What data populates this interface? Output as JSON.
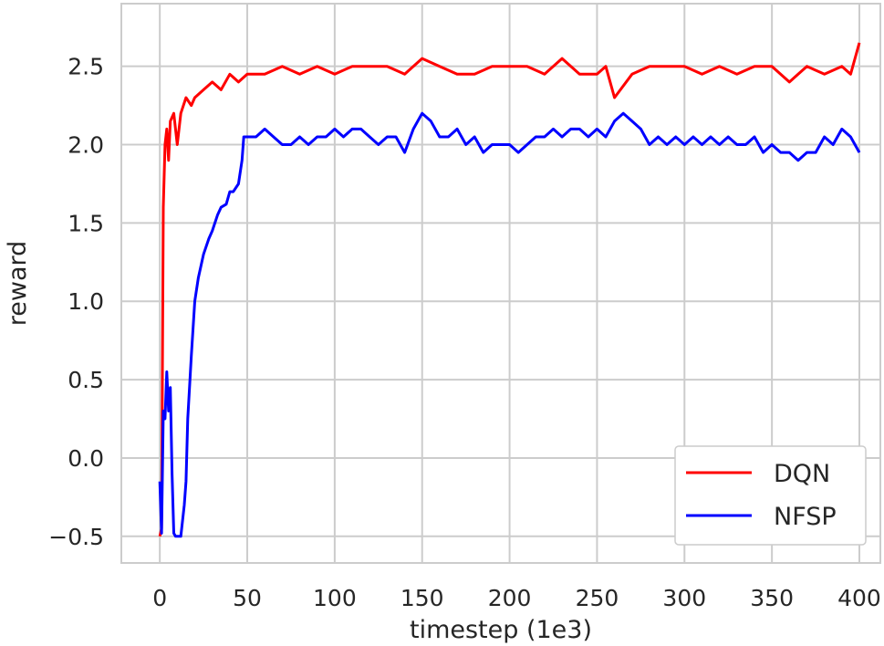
{
  "chart_data": {
    "type": "line",
    "title": "",
    "xlabel": "timestep (1e3)",
    "ylabel": "reward",
    "xlim": [
      -22,
      412
    ],
    "ylim": [
      -0.67,
      2.9
    ],
    "xticks": [
      0,
      50,
      100,
      150,
      200,
      250,
      300,
      350,
      400
    ],
    "xtick_labels": [
      "0",
      "50",
      "100",
      "150",
      "200",
      "250",
      "300",
      "350",
      "400"
    ],
    "yticks": [
      -0.5,
      0.0,
      0.5,
      1.0,
      1.5,
      2.0,
      2.5
    ],
    "ytick_labels": [
      "−0.5",
      "0.0",
      "0.5",
      "1.0",
      "1.5",
      "2.0",
      "2.5"
    ],
    "grid": true,
    "legend_position": "lower-right",
    "series": [
      {
        "name": "DQN",
        "color": "#ff0000",
        "x": [
          0,
          1,
          2,
          3,
          4,
          5,
          6,
          8,
          10,
          12,
          15,
          18,
          20,
          25,
          30,
          35,
          40,
          45,
          50,
          60,
          70,
          80,
          90,
          100,
          110,
          120,
          130,
          140,
          150,
          160,
          170,
          180,
          190,
          200,
          210,
          220,
          230,
          240,
          250,
          255,
          260,
          270,
          280,
          290,
          300,
          310,
          320,
          330,
          340,
          350,
          360,
          365,
          370,
          380,
          390,
          395,
          400
        ],
        "y": [
          -0.5,
          -0.45,
          1.6,
          2.0,
          2.1,
          1.9,
          2.15,
          2.2,
          2.0,
          2.2,
          2.3,
          2.25,
          2.3,
          2.35,
          2.4,
          2.35,
          2.45,
          2.4,
          2.45,
          2.45,
          2.5,
          2.45,
          2.5,
          2.45,
          2.5,
          2.5,
          2.5,
          2.45,
          2.55,
          2.5,
          2.45,
          2.45,
          2.5,
          2.5,
          2.5,
          2.45,
          2.55,
          2.45,
          2.45,
          2.5,
          2.3,
          2.45,
          2.5,
          2.5,
          2.5,
          2.45,
          2.5,
          2.45,
          2.5,
          2.5,
          2.4,
          2.45,
          2.5,
          2.45,
          2.5,
          2.45,
          2.65
        ]
      },
      {
        "name": "NFSP",
        "color": "#0000ff",
        "x": [
          0,
          1,
          2,
          3,
          4,
          5,
          6,
          7,
          8,
          9,
          10,
          12,
          14,
          15,
          16,
          18,
          20,
          22,
          25,
          28,
          30,
          33,
          35,
          38,
          40,
          42,
          45,
          47,
          48,
          50,
          55,
          60,
          65,
          70,
          75,
          80,
          85,
          90,
          95,
          100,
          105,
          110,
          115,
          120,
          125,
          130,
          135,
          140,
          145,
          150,
          155,
          160,
          165,
          170,
          175,
          180,
          185,
          190,
          195,
          200,
          205,
          210,
          215,
          220,
          225,
          230,
          235,
          240,
          245,
          250,
          255,
          260,
          265,
          270,
          275,
          280,
          285,
          290,
          295,
          300,
          305,
          310,
          315,
          320,
          325,
          330,
          335,
          340,
          345,
          350,
          355,
          360,
          365,
          370,
          375,
          380,
          385,
          390,
          395,
          400
        ],
        "y": [
          -0.15,
          -0.48,
          0.3,
          0.25,
          0.55,
          0.3,
          0.45,
          -0.1,
          -0.48,
          -0.5,
          -0.5,
          -0.5,
          -0.3,
          -0.15,
          0.25,
          0.65,
          1.0,
          1.15,
          1.3,
          1.4,
          1.45,
          1.55,
          1.6,
          1.62,
          1.7,
          1.7,
          1.75,
          1.9,
          2.05,
          2.05,
          2.05,
          2.1,
          2.05,
          2.0,
          2.0,
          2.05,
          2.0,
          2.05,
          2.05,
          2.1,
          2.05,
          2.1,
          2.1,
          2.05,
          2.0,
          2.05,
          2.05,
          1.95,
          2.1,
          2.2,
          2.15,
          2.05,
          2.05,
          2.1,
          2.0,
          2.05,
          1.95,
          2.0,
          2.0,
          2.0,
          1.95,
          2.0,
          2.05,
          2.05,
          2.1,
          2.05,
          2.1,
          2.1,
          2.05,
          2.1,
          2.05,
          2.15,
          2.2,
          2.15,
          2.1,
          2.0,
          2.05,
          2.0,
          2.05,
          2.0,
          2.05,
          2.0,
          2.05,
          2.0,
          2.05,
          2.0,
          2.0,
          2.05,
          1.95,
          2.0,
          1.95,
          1.95,
          1.9,
          1.95,
          1.95,
          2.05,
          2.0,
          2.1,
          2.05,
          1.95
        ]
      }
    ]
  }
}
